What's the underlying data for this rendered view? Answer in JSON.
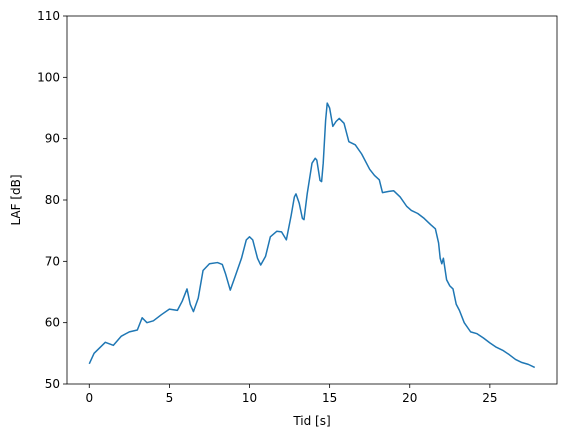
{
  "chart_data": {
    "type": "line",
    "x_label": "Tid [s]",
    "y_label": "LAF [dB]",
    "xlim": [
      -1.39,
      29.19
    ],
    "ylim": [
      50,
      110
    ],
    "xticks": [
      0,
      5,
      10,
      15,
      20,
      25
    ],
    "yticks": [
      50,
      60,
      70,
      80,
      90,
      100,
      110
    ],
    "grid": false,
    "series": [
      {
        "color": "#1f77b4",
        "x": [
          0,
          0.3,
          1.0,
          1.5,
          2.0,
          2.5,
          3.0,
          3.3,
          3.6,
          4.0,
          4.5,
          5.0,
          5.5,
          5.8,
          6.1,
          6.3,
          6.5,
          6.8,
          7.1,
          7.5,
          8.0,
          8.3,
          8.5,
          8.8,
          9.1,
          9.5,
          9.8,
          10.0,
          10.2,
          10.5,
          10.7,
          11.0,
          11.3,
          11.7,
          12.0,
          12.3,
          12.6,
          12.8,
          12.9,
          13.1,
          13.3,
          13.4,
          13.6,
          13.9,
          14.1,
          14.2,
          14.4,
          14.5,
          14.6,
          14.75,
          14.85,
          15.0,
          15.2,
          15.4,
          15.6,
          15.9,
          16.2,
          16.6,
          17.0,
          17.5,
          17.8,
          18.1,
          18.3,
          18.7,
          19.0,
          19.4,
          19.8,
          20.1,
          20.5,
          20.9,
          21.3,
          21.6,
          21.8,
          21.9,
          22.0,
          22.1,
          22.3,
          22.5,
          22.7,
          22.9,
          23.1,
          23.4,
          23.8,
          24.2,
          24.6,
          25.0,
          25.4,
          25.8,
          26.2,
          26.6,
          27.0,
          27.4,
          27.8
        ],
        "values": [
          53.3,
          55,
          56.8,
          56.3,
          57.8,
          58.5,
          58.8,
          60.8,
          60,
          60.3,
          61.3,
          62.2,
          62,
          63.5,
          65.5,
          63,
          61.8,
          64,
          68.5,
          69.6,
          69.8,
          69.5,
          68,
          65.3,
          67.5,
          70.5,
          73.5,
          74,
          73.5,
          70.5,
          69.4,
          70.8,
          74,
          74.9,
          74.8,
          73.5,
          77.5,
          80.5,
          81,
          79.5,
          77,
          76.8,
          81,
          86,
          86.8,
          86.5,
          83.2,
          83,
          86,
          93,
          95.8,
          95,
          92,
          92.8,
          93.3,
          92.5,
          89.5,
          89,
          87.5,
          85,
          84,
          83.3,
          81.2,
          81.4,
          81.5,
          80.5,
          79,
          78.3,
          77.8,
          77,
          76,
          75.3,
          73,
          70.5,
          69.6,
          70.5,
          67,
          66,
          65.5,
          63,
          62,
          60,
          58.5,
          58.2,
          57.5,
          56.7,
          56,
          55.5,
          54.8,
          54,
          53.5,
          53.2,
          52.7
        ]
      }
    ]
  }
}
